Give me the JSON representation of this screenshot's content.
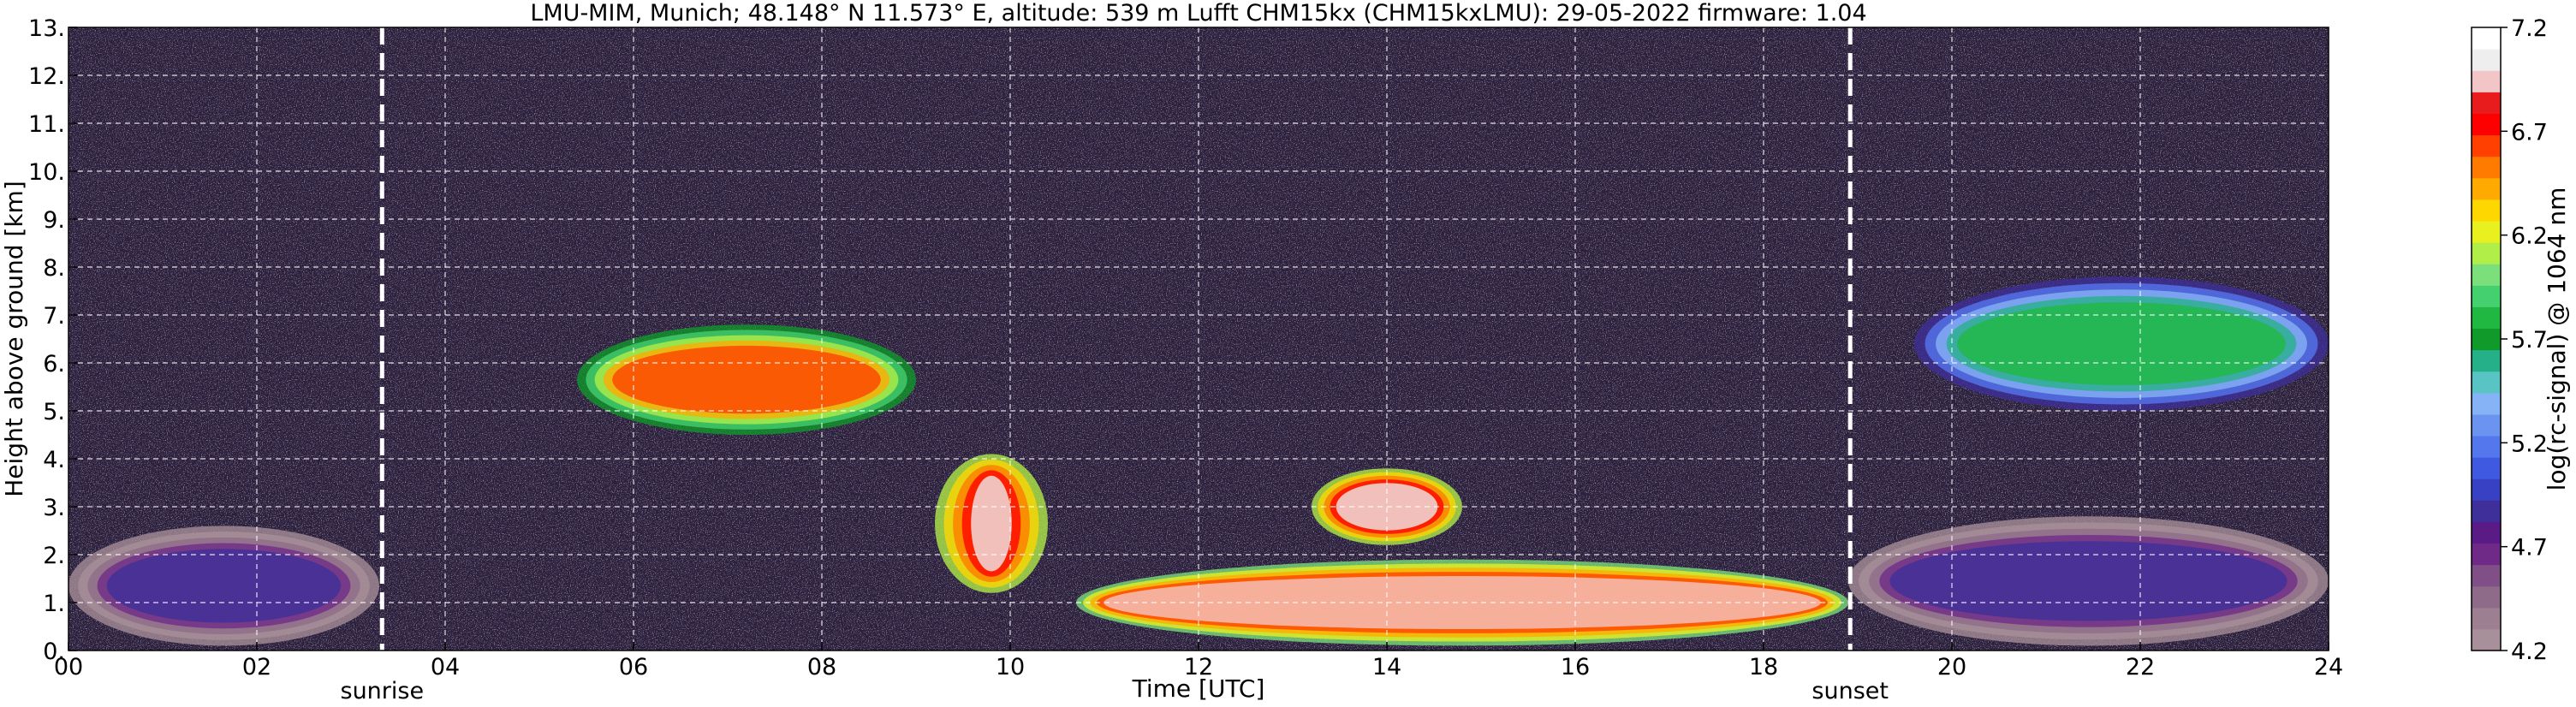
{
  "chart_data": {
    "type": "heatmap",
    "title": "LMU-MIM, Munich; 48.148° N 11.573° E, altitude: 539 m    Lufft CHM15kx (CHM15kxLMU): 29-05-2022    firmware: 1.04",
    "xlabel": "Time [UTC]",
    "ylabel": "Height above ground [km]",
    "xlim": [
      0,
      24
    ],
    "ylim": [
      0,
      13
    ],
    "x_ticks": [
      "00",
      "02",
      "04",
      "06",
      "08",
      "10",
      "12",
      "14",
      "16",
      "18",
      "20",
      "22",
      "24"
    ],
    "y_ticks": [
      "0.",
      "1.",
      "2.",
      "3.",
      "4.",
      "5.",
      "6.",
      "7.",
      "8.",
      "9.",
      "10.",
      "11.",
      "12.",
      "13."
    ],
    "grid": true,
    "markers": [
      {
        "label": "sunrise",
        "x": 3.33
      },
      {
        "label": "sunset",
        "x": 18.92
      }
    ],
    "colorbar": {
      "label": "log(rc-signal) @ 1064 nm",
      "range": [
        4.2,
        7.2
      ],
      "ticks": [
        "4.2",
        "4.7",
        "5.2",
        "5.7",
        "6.2",
        "6.7",
        "7.2"
      ],
      "colors": [
        "#a8909a",
        "#9c7f91",
        "#8e6b89",
        "#7f4f86",
        "#6e2a86",
        "#5a1b86",
        "#3e2f9a",
        "#3840c4",
        "#3f5ae0",
        "#5577ee",
        "#6b93f0",
        "#86b3f5",
        "#58c4c4",
        "#25b08a",
        "#0f9a2a",
        "#20b840",
        "#45d070",
        "#7be07c",
        "#b2ee48",
        "#e8f020",
        "#ffd700",
        "#ffaa00",
        "#ff7b00",
        "#ff4000",
        "#ff0000",
        "#e81c1c",
        "#f2c6c6",
        "#eeeeee",
        "#ffffff"
      ]
    },
    "features": [
      {
        "kind": "aerosol layer",
        "x": [
          0,
          3.3
        ],
        "height_km": [
          0.1,
          2.6
        ],
        "level": 4.9
      },
      {
        "kind": "boundary layer",
        "x": [
          10.7,
          18.9
        ],
        "height_km": [
          0.1,
          1.9
        ],
        "level": 6.9
      },
      {
        "kind": "cloud",
        "x": [
          5.4,
          9.0
        ],
        "height_km": [
          4.5,
          6.8
        ],
        "level": 6.6
      },
      {
        "kind": "cloud",
        "x": [
          9.2,
          10.4
        ],
        "height_km": [
          1.2,
          4.1
        ],
        "level": 7.0
      },
      {
        "kind": "cloud",
        "x": [
          13.2,
          14.8
        ],
        "height_km": [
          2.2,
          3.8
        ],
        "level": 7.0
      },
      {
        "kind": "cloud",
        "x": [
          19.6,
          24.0
        ],
        "height_km": [
          5.0,
          7.8
        ],
        "level": 5.8
      },
      {
        "kind": "aerosol layer",
        "x": [
          18.9,
          24.0
        ],
        "height_km": [
          0.1,
          2.8
        ],
        "level": 4.9
      }
    ]
  }
}
